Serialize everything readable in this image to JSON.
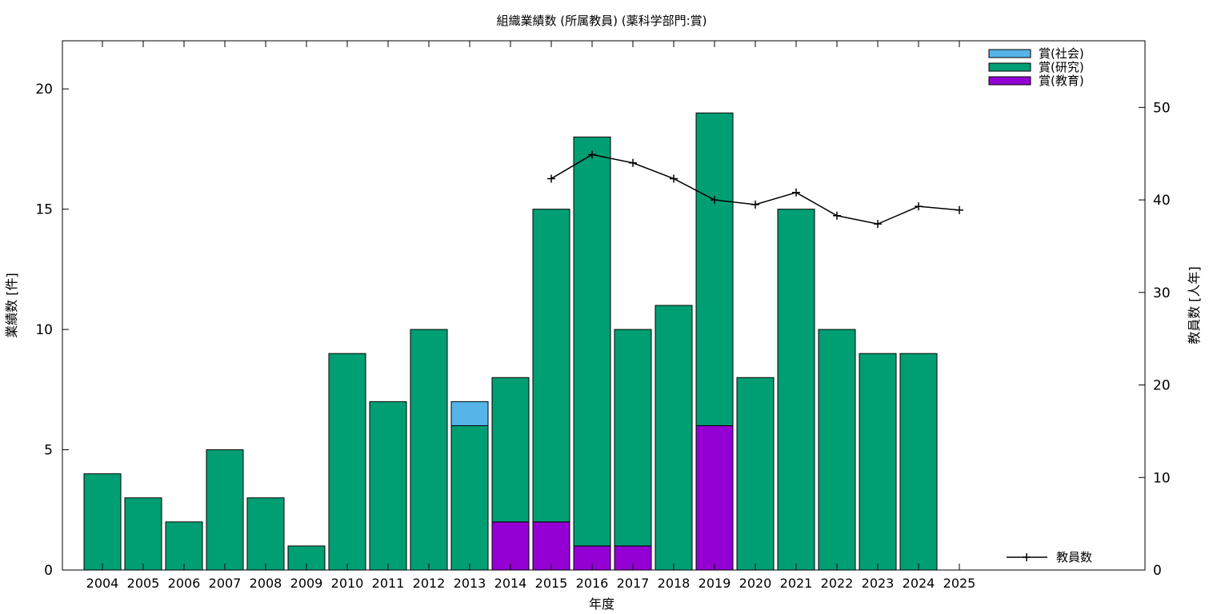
{
  "chart_data": {
    "type": "bar",
    "stacked": true,
    "title": "組織業績数 (所属教員) (薬科学部門:賞)",
    "xlabel": "年度",
    "ylabel": "業績数 [件]",
    "y2label": "教員数 [人年]",
    "ylim": [
      0,
      22
    ],
    "y2lim": [
      0,
      57.2
    ],
    "yticks": [
      0,
      5,
      10,
      15,
      20
    ],
    "y2ticks": [
      0,
      10,
      20,
      30,
      40,
      50
    ],
    "grid": false,
    "legend_position": "top-right",
    "categories": [
      "2004",
      "2005",
      "2006",
      "2007",
      "2008",
      "2009",
      "2010",
      "2011",
      "2012",
      "2013",
      "2014",
      "2015",
      "2016",
      "2017",
      "2018",
      "2019",
      "2020",
      "2021",
      "2022",
      "2023",
      "2024",
      "2025"
    ],
    "series": [
      {
        "name": "賞(教育)",
        "color": "#9400d3",
        "values": [
          0,
          0,
          0,
          0,
          0,
          0,
          0,
          0,
          0,
          0,
          2,
          2,
          1,
          1,
          0,
          6,
          0,
          0,
          0,
          0,
          0,
          0
        ]
      },
      {
        "name": "賞(研究)",
        "color": "#009e73",
        "values": [
          4,
          3,
          2,
          5,
          3,
          1,
          9,
          7,
          10,
          6,
          6,
          13,
          17,
          9,
          11,
          13,
          8,
          15,
          10,
          9,
          9,
          0
        ]
      },
      {
        "name": "賞(社会)",
        "color": "#56b4e9",
        "values": [
          0,
          0,
          0,
          0,
          0,
          0,
          0,
          0,
          0,
          1,
          0,
          0,
          0,
          0,
          0,
          0,
          0,
          0,
          0,
          0,
          0,
          0
        ]
      }
    ],
    "line_series": {
      "name": "教員数",
      "axis": "right",
      "color": "#000000",
      "x": [
        "2015",
        "2016",
        "2017",
        "2018",
        "2019",
        "2020",
        "2021",
        "2022",
        "2023",
        "2024",
        "2025"
      ],
      "values": [
        42.3,
        44.9,
        44.0,
        42.3,
        40.0,
        39.5,
        40.8,
        38.3,
        37.4,
        39.3,
        38.9
      ]
    }
  }
}
